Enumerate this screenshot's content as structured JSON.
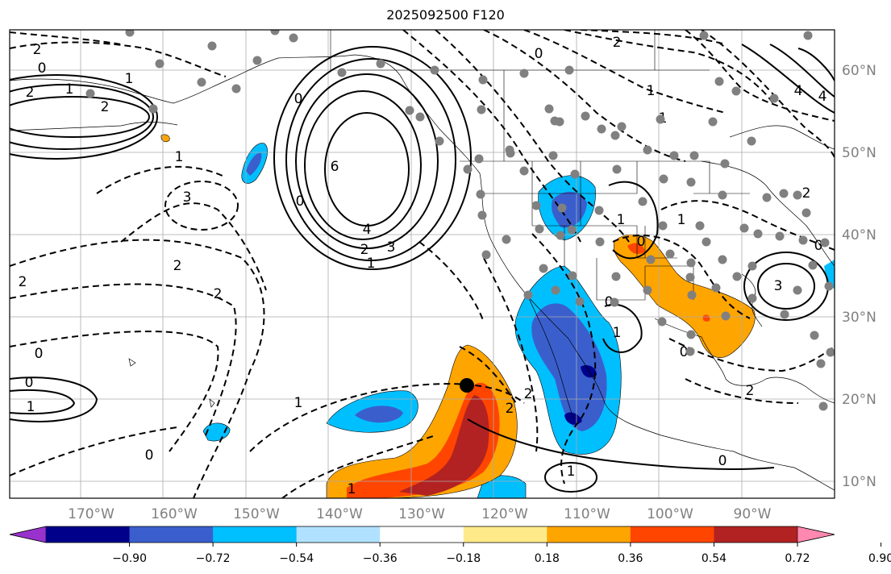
{
  "title": "2025092500 F120",
  "axes": {
    "lon_labels": [
      "170°W",
      "160°W",
      "150°W",
      "140°W",
      "130°W",
      "120°W",
      "110°W",
      "100°W",
      "90°W"
    ],
    "lat_labels": [
      "60°N",
      "50°N",
      "40°N",
      "30°N",
      "20°N",
      "10°N"
    ]
  },
  "colorbar": {
    "levels": [
      "−0.90",
      "−0.72",
      "−0.54",
      "−0.36",
      "−0.18",
      "0.18",
      "0.36",
      "0.54",
      "0.72",
      "0.90"
    ],
    "colors": [
      "#9932cc",
      "#00008b",
      "#3a5fcd",
      "#00bfff",
      "#b0e2ff",
      "#ffffff",
      "#ffea8a",
      "#ffa500",
      "#ff4500",
      "#b22222",
      "#ff88b0"
    ]
  },
  "contour_labels": [
    "2",
    "0",
    "1",
    "2",
    "3",
    "4",
    "6",
    "4",
    "3",
    "2",
    "1",
    "0",
    "0",
    "1",
    "2",
    "3",
    "4",
    "1",
    "2",
    "2",
    "2",
    "1",
    "1",
    "0",
    "0",
    "2",
    "0",
    "1",
    "2",
    "1",
    "0",
    "1",
    "1",
    "0",
    "0",
    "1",
    "1",
    "2",
    "0",
    "1",
    "0",
    "2",
    "2",
    "0"
  ],
  "marker": {
    "type": "black-dot"
  }
}
